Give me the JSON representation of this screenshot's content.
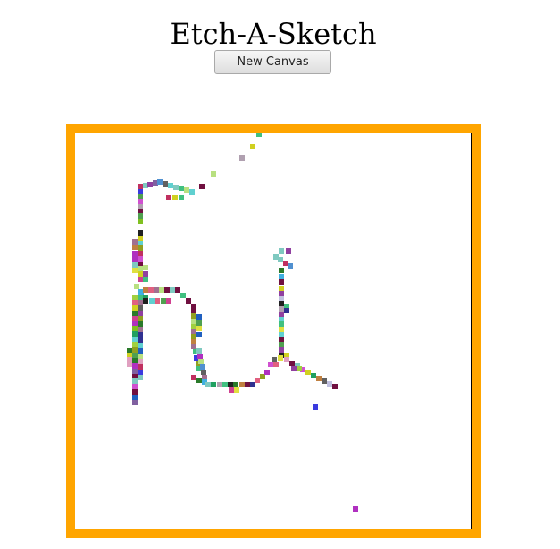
{
  "header": {
    "title": "Etch-A-Sketch"
  },
  "controls": {
    "new_canvas_label": "New Canvas"
  },
  "canvas": {
    "border_color": "#FFA500",
    "background_color": "#FFFFFF",
    "grid_size": 74
  }
}
